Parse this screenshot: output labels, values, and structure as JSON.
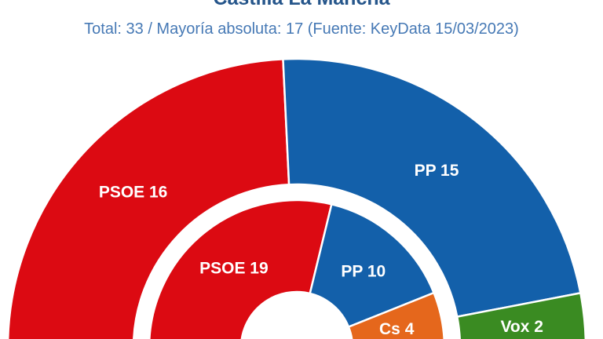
{
  "page": {
    "title": "Castilla La Mancha",
    "subtitle": "Total: 33 / Mayoría absoluta: 17 (Fuente: KeyData 15/03/2023)"
  },
  "chart_data": {
    "type": "pie",
    "variant": "semicircle_double_donut",
    "title": "Castilla La Mancha",
    "subtitle": "Total: 33 / Mayoría absoluta: 17 (Fuente: KeyData 15/03/2023)",
    "total_seats": 33,
    "majority_absolute": 17,
    "start_angle_deg": 180,
    "end_angle_deg": 0,
    "legend": "none",
    "grid": false,
    "rings": [
      {
        "id": "outer",
        "segments": [
          {
            "party": "PSOE",
            "seats": 16,
            "label": "PSOE 16",
            "color": "#DC0A12"
          },
          {
            "party": "PP",
            "seats": 15,
            "label": "PP 15",
            "color": "#1360AA"
          },
          {
            "party": "Vox",
            "seats": 2,
            "label": "Vox 2",
            "color": "#3A8B22"
          }
        ]
      },
      {
        "id": "inner",
        "segments": [
          {
            "party": "PSOE",
            "seats": 19,
            "label": "PSOE 19",
            "color": "#DC0A12"
          },
          {
            "party": "PP",
            "seats": 10,
            "label": "PP 10",
            "color": "#1360AA"
          },
          {
            "party": "Cs",
            "seats": 4,
            "label": "Cs 4",
            "color": "#E5671C"
          }
        ]
      }
    ],
    "colors": {
      "title": "#26568B",
      "subtitle": "#4679B5",
      "label_text": "#FFFFFF",
      "separator": "#FFFFFF",
      "background": "#FFFFFF"
    }
  }
}
